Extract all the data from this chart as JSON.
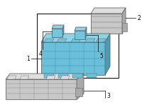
{
  "bg_color": "#ffffff",
  "outline": "#666666",
  "blue_front": "#6bbfd8",
  "blue_top": "#8dd4e8",
  "blue_right": "#4a9ab8",
  "blue_relay": "#70c8dc",
  "gray_front": "#c8c8c8",
  "gray_top": "#dedede",
  "gray_right": "#aaaaaa",
  "gray_dark": "#888888",
  "label_fs": 5.5
}
